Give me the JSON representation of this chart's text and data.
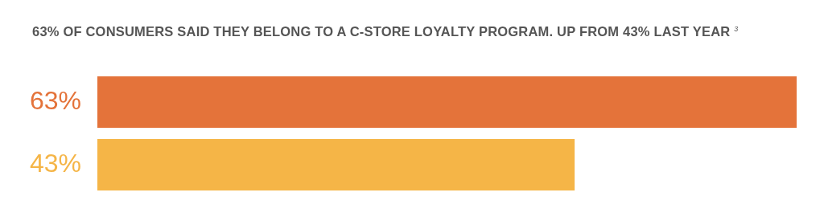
{
  "chart_data": {
    "type": "bar",
    "orientation": "horizontal",
    "title": "63% OF CONSUMERS SAID THEY BELONG TO A C-STORE LOYALTY PROGRAM. UP FROM 43% LAST YEAR $^{3}$",
    "categories": [
      null,
      null
    ],
    "values": [
      63,
      43
    ],
    "colors": [
      "#e4733a",
      "#f5b547"
    ],
    "value_labels": [
      "63%",
      "43%"
    ]
  }
}
